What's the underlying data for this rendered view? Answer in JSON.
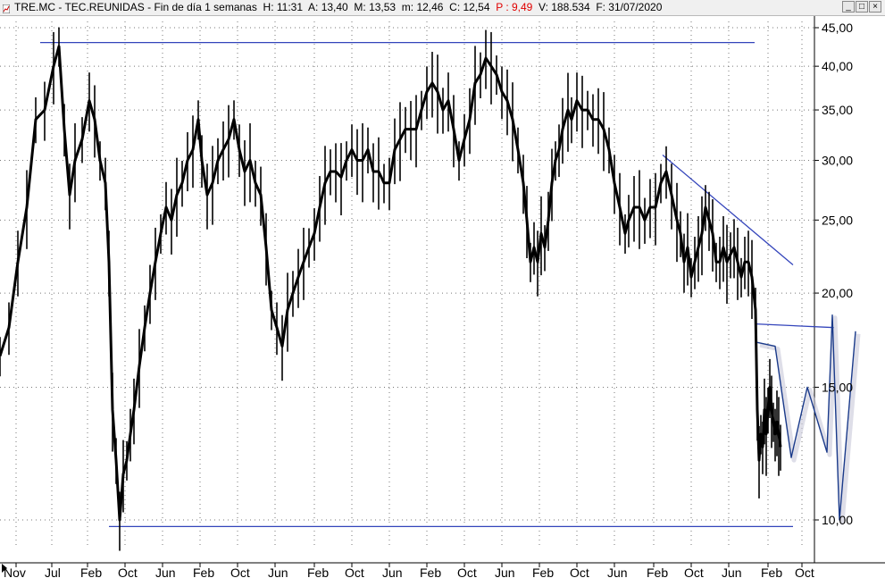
{
  "window": {
    "title": {
      "ticker": "TRE.MC - TEC.REUNIDAS - Fin de día 1 semanas",
      "h": "H: 11:31",
      "a": "A: 13,40",
      "m": "M: 13,53",
      "min": "m: 12,46",
      "c": "C: 12,54",
      "p": "P : 9,49",
      "v": "V: 188.534",
      "f": "F: 31/07/2020"
    },
    "buttons": {
      "minimize": "_",
      "maximize": "□",
      "close": "×"
    }
  },
  "colors": {
    "price": "#000000",
    "trendlines": "#3344bb",
    "projection": "#1a3a8a",
    "grid": "#777777",
    "negative": "#e00000"
  },
  "chart_data": {
    "type": "line",
    "scale": "log",
    "ylim": [
      9.3,
      46
    ],
    "y_ticks": [
      "45,00",
      "40,00",
      "35,00",
      "30,00",
      "25,00",
      "20,00",
      "15,00",
      "10,00"
    ],
    "y_tick_values": [
      45,
      40,
      35,
      30,
      25,
      20,
      15,
      10
    ],
    "x_ticks": [
      "Nov",
      "Jul",
      "Feb",
      "Oct",
      "Jun",
      "Feb",
      "Oct",
      "Jun",
      "Feb",
      "Oct",
      "Jun",
      "Feb",
      "Oct",
      "Jun",
      "Feb",
      "Oct",
      "Jun",
      "Feb",
      "Oct",
      "Jun",
      "Feb",
      "Oct"
    ],
    "grid": true,
    "series": [
      {
        "values": [
          [
            0,
            16.5
          ],
          [
            10,
            18
          ],
          [
            20,
            22
          ],
          [
            30,
            26
          ],
          [
            40,
            34
          ],
          [
            50,
            35
          ],
          [
            60,
            40
          ],
          [
            66,
            42.5
          ],
          [
            72,
            33
          ],
          [
            78,
            27
          ],
          [
            84,
            30
          ],
          [
            92,
            32
          ],
          [
            100,
            36
          ],
          [
            106,
            34
          ],
          [
            112,
            30
          ],
          [
            118,
            28
          ],
          [
            122,
            22
          ],
          [
            126,
            14
          ],
          [
            130,
            12
          ],
          [
            134,
            10
          ],
          [
            138,
            11.5
          ],
          [
            142,
            12
          ],
          [
            146,
            13
          ],
          [
            150,
            14
          ],
          [
            156,
            16
          ],
          [
            162,
            18
          ],
          [
            168,
            20
          ],
          [
            174,
            22
          ],
          [
            180,
            24
          ],
          [
            186,
            26
          ],
          [
            192,
            25
          ],
          [
            198,
            27
          ],
          [
            204,
            28
          ],
          [
            210,
            30
          ],
          [
            216,
            31
          ],
          [
            222,
            34
          ],
          [
            226,
            30
          ],
          [
            232,
            27
          ],
          [
            238,
            28
          ],
          [
            244,
            30
          ],
          [
            250,
            31
          ],
          [
            256,
            32
          ],
          [
            262,
            34
          ],
          [
            268,
            31
          ],
          [
            274,
            29
          ],
          [
            280,
            30
          ],
          [
            286,
            28
          ],
          [
            292,
            27
          ],
          [
            298,
            23
          ],
          [
            304,
            19
          ],
          [
            310,
            18
          ],
          [
            316,
            17
          ],
          [
            322,
            19
          ],
          [
            328,
            20
          ],
          [
            334,
            21
          ],
          [
            340,
            22
          ],
          [
            346,
            23
          ],
          [
            352,
            24
          ],
          [
            358,
            26
          ],
          [
            364,
            28
          ],
          [
            370,
            29
          ],
          [
            376,
            29
          ],
          [
            382,
            28.5
          ],
          [
            388,
            30
          ],
          [
            394,
            31
          ],
          [
            400,
            30
          ],
          [
            406,
            30
          ],
          [
            412,
            31
          ],
          [
            418,
            29
          ],
          [
            424,
            29
          ],
          [
            430,
            28
          ],
          [
            436,
            28
          ],
          [
            442,
            31
          ],
          [
            448,
            32
          ],
          [
            454,
            33
          ],
          [
            460,
            33
          ],
          [
            466,
            33
          ],
          [
            472,
            35
          ],
          [
            478,
            37
          ],
          [
            484,
            38
          ],
          [
            490,
            37
          ],
          [
            496,
            35
          ],
          [
            502,
            36
          ],
          [
            508,
            33
          ],
          [
            514,
            30
          ],
          [
            520,
            32
          ],
          [
            526,
            34
          ],
          [
            532,
            38
          ],
          [
            538,
            39
          ],
          [
            544,
            41
          ],
          [
            550,
            40
          ],
          [
            556,
            39
          ],
          [
            562,
            37
          ],
          [
            568,
            36
          ],
          [
            574,
            34
          ],
          [
            580,
            31
          ],
          [
            586,
            28
          ],
          [
            590,
            25
          ],
          [
            594,
            22
          ],
          [
            598,
            23
          ],
          [
            602,
            22
          ],
          [
            606,
            24
          ],
          [
            610,
            23
          ],
          [
            614,
            25
          ],
          [
            618,
            28
          ],
          [
            622,
            30
          ],
          [
            626,
            31
          ],
          [
            630,
            33
          ],
          [
            636,
            35
          ],
          [
            640,
            34
          ],
          [
            646,
            36
          ],
          [
            652,
            35
          ],
          [
            658,
            35
          ],
          [
            664,
            34
          ],
          [
            670,
            34
          ],
          [
            676,
            33
          ],
          [
            682,
            31
          ],
          [
            688,
            28
          ],
          [
            694,
            26
          ],
          [
            700,
            24
          ],
          [
            704,
            25
          ],
          [
            710,
            26
          ],
          [
            716,
            26
          ],
          [
            722,
            25
          ],
          [
            728,
            26
          ],
          [
            734,
            26
          ],
          [
            740,
            28
          ],
          [
            746,
            29
          ],
          [
            752,
            27
          ],
          [
            758,
            25
          ],
          [
            762,
            24
          ],
          [
            766,
            22
          ],
          [
            770,
            23
          ],
          [
            774,
            21
          ],
          [
            778,
            22
          ],
          [
            782,
            23
          ],
          [
            786,
            24
          ],
          [
            790,
            26
          ],
          [
            794,
            25
          ],
          [
            798,
            24
          ],
          [
            802,
            22
          ],
          [
            806,
            22
          ],
          [
            810,
            23
          ],
          [
            814,
            22
          ],
          [
            818,
            22.5
          ],
          [
            822,
            23
          ],
          [
            826,
            22
          ],
          [
            830,
            21
          ],
          [
            834,
            22
          ],
          [
            838,
            22
          ],
          [
            842,
            21
          ],
          [
            846,
            19
          ],
          [
            848,
            14
          ],
          [
            850,
            12
          ],
          [
            852,
            13
          ],
          [
            854,
            12.5
          ],
          [
            856,
            14
          ],
          [
            858,
            13
          ],
          [
            860,
            14
          ],
          [
            862,
            15
          ],
          [
            864,
            14
          ],
          [
            866,
            13.5
          ],
          [
            868,
            13
          ],
          [
            870,
            13.5
          ],
          [
            872,
            13
          ],
          [
            874,
            12.5
          ]
        ]
      }
    ],
    "trendlines": [
      {
        "from": [
          45,
          43
        ],
        "to": [
          845,
          43
        ]
      },
      {
        "from": [
          122,
          9.8
        ],
        "to": [
          888,
          9.8
        ]
      },
      {
        "from": [
          742,
          30.5
        ],
        "to": [
          888,
          21.8
        ]
      },
      {
        "from": [
          846,
          18.2
        ],
        "to": [
          934,
          18
        ]
      }
    ],
    "projection": [
      [
        848,
        17.2
      ],
      [
        868,
        17
      ],
      [
        886,
        12.1
      ],
      [
        904,
        15
      ],
      [
        926,
        12.3
      ],
      [
        932,
        18.7
      ],
      [
        940,
        10
      ],
      [
        958,
        17.8
      ]
    ]
  }
}
